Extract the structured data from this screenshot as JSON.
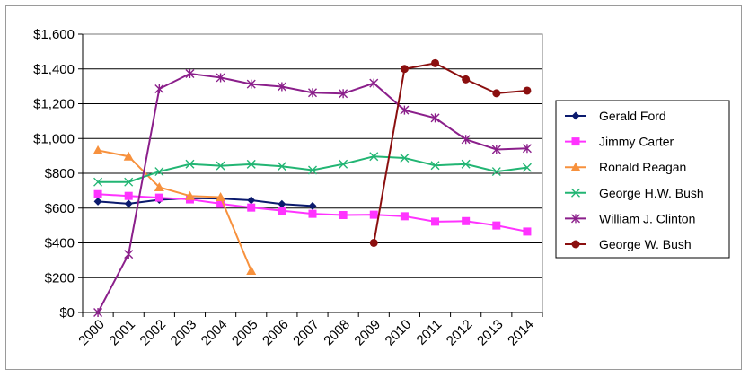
{
  "chart_data": {
    "type": "line",
    "x": [
      "2000",
      "2001",
      "2002",
      "2003",
      "2004",
      "2005",
      "2006",
      "2007",
      "2008",
      "2009",
      "2010",
      "2011",
      "2012",
      "2013",
      "2014"
    ],
    "ylim": [
      0,
      1600
    ],
    "yticks": [
      "$0",
      "$200",
      "$400",
      "$600",
      "$800",
      "$1,000",
      "$1,200",
      "$1,400",
      "$1,600"
    ],
    "grid": "horizontal",
    "legend_placement": "right",
    "series": [
      {
        "name": "Gerald Ford",
        "color": "#0b1a6e",
        "marker": "diamond",
        "values": [
          638,
          625,
          648,
          657,
          655,
          645,
          623,
          612,
          null,
          null,
          null,
          null,
          null,
          null,
          null
        ]
      },
      {
        "name": "Jimmy Carter",
        "color": "#ff33ff",
        "marker": "square",
        "values": [
          680,
          670,
          660,
          650,
          625,
          603,
          585,
          567,
          560,
          562,
          553,
          522,
          525,
          500,
          465
        ]
      },
      {
        "name": "Ronald Reagan",
        "color": "#f7913d",
        "marker": "triangle",
        "values": [
          932,
          897,
          720,
          670,
          663,
          240,
          null,
          null,
          null,
          null,
          null,
          null,
          null,
          null,
          null
        ]
      },
      {
        "name": "George H.W. Bush",
        "color": "#22b573",
        "marker": "x",
        "values": [
          750,
          750,
          810,
          853,
          843,
          852,
          840,
          818,
          853,
          897,
          888,
          845,
          853,
          810,
          833
        ]
      },
      {
        "name": "William J. Clinton",
        "color": "#8b1f8b",
        "marker": "star",
        "values": [
          0,
          335,
          1285,
          1373,
          1350,
          1313,
          1298,
          1263,
          1258,
          1318,
          1163,
          1118,
          995,
          937,
          943
        ]
      },
      {
        "name": "George W. Bush",
        "color": "#8b0f0f",
        "marker": "circle",
        "values": [
          null,
          null,
          null,
          null,
          null,
          null,
          null,
          null,
          null,
          400,
          1400,
          1433,
          1340,
          1260,
          1275
        ]
      }
    ]
  }
}
